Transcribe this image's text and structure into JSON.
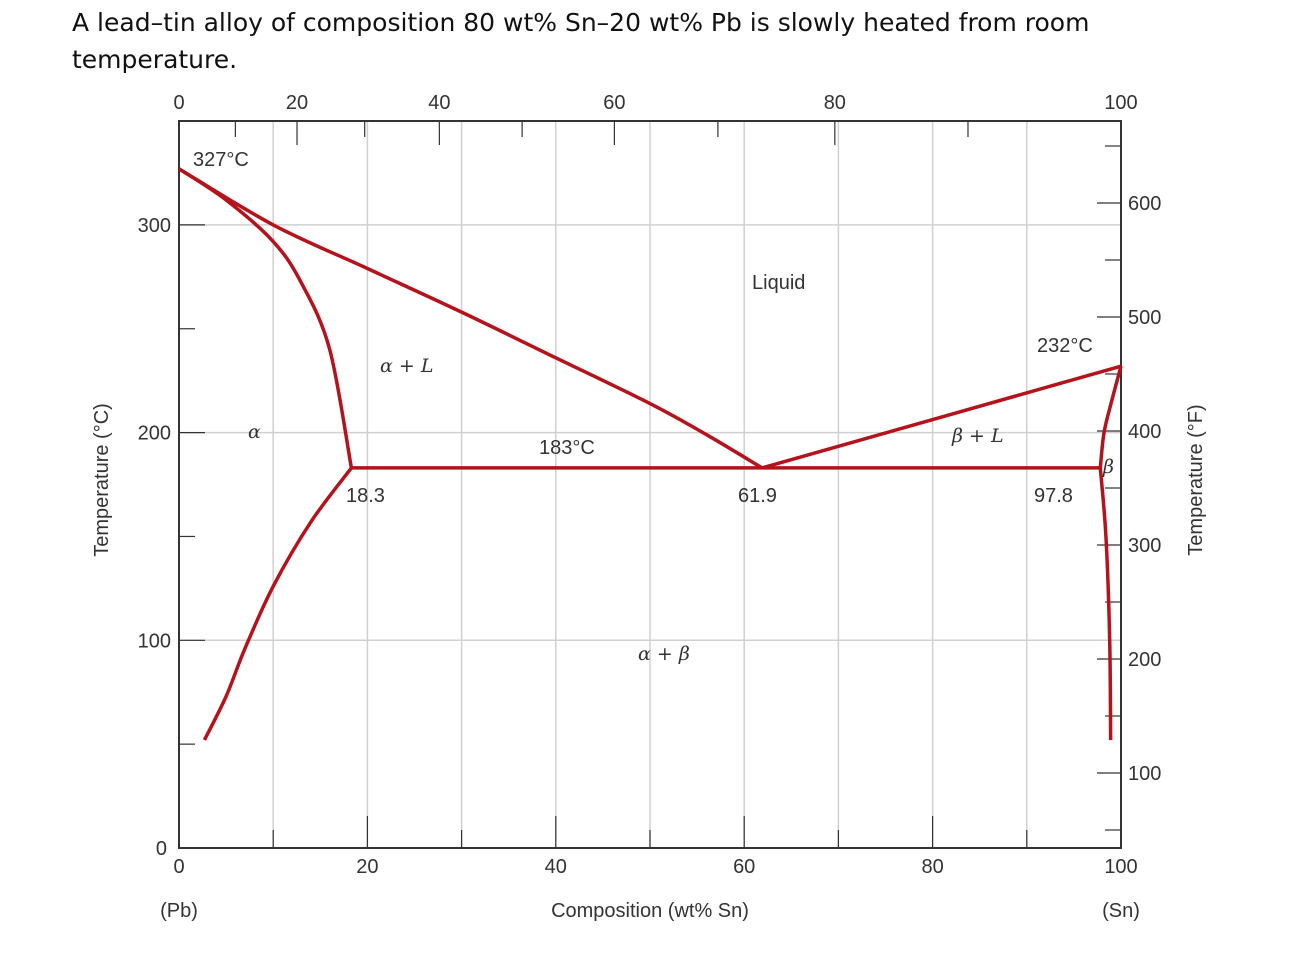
{
  "question": "A lead–tin alloy of composition 80 wt% Sn–20 wt% Pb is slowly heated from room temperature.",
  "chart_data": {
    "type": "line",
    "xlabel": "Composition (wt% Sn)",
    "ylabel": "Temperature (°C)",
    "y2label": "Temperature (°F)",
    "xlim": [
      0,
      100
    ],
    "ylim": [
      0,
      340
    ],
    "x_ticks": [
      "0",
      "20",
      "40",
      "60",
      "80",
      "100"
    ],
    "x_tick_values": [
      0,
      20,
      40,
      60,
      80,
      100
    ],
    "x_end_labels": {
      "left": "(Pb)",
      "right": "(Sn)"
    },
    "top_ticks": [
      "0",
      "20",
      "40",
      "60",
      "80",
      "100"
    ],
    "top_tick_values": [
      0,
      20,
      40,
      60,
      80,
      100
    ],
    "y_ticks": [
      "0",
      "100",
      "200",
      "300"
    ],
    "y_tick_values": [
      0,
      100,
      200,
      300
    ],
    "y2_ticks": [
      "100",
      "200",
      "300",
      "400",
      "500",
      "600"
    ],
    "y2_tick_values": [
      100,
      200,
      300,
      400,
      500,
      600
    ],
    "grid": true,
    "line_color": "#b5121b",
    "curves": [
      {
        "id": "liquidus-left",
        "points": [
          [
            0,
            327
          ],
          [
            10,
            300
          ],
          [
            20,
            279
          ],
          [
            30,
            258
          ],
          [
            40,
            236
          ],
          [
            50,
            214
          ],
          [
            56,
            199
          ],
          [
            61.9,
            183
          ]
        ]
      },
      {
        "id": "liquidus-right",
        "points": [
          [
            61.9,
            183
          ],
          [
            100,
            232
          ]
        ]
      },
      {
        "id": "solidus-alpha",
        "points": [
          [
            0,
            327
          ],
          [
            5,
            312
          ],
          [
            10,
            292
          ],
          [
            13,
            272
          ],
          [
            16,
            240
          ],
          [
            18.3,
            183
          ]
        ]
      },
      {
        "id": "solvus-alpha",
        "points": [
          [
            18.3,
            183
          ],
          [
            14,
            157
          ],
          [
            10,
            126
          ],
          [
            7,
            96
          ],
          [
            5,
            73
          ],
          [
            2.7,
            52
          ]
        ]
      },
      {
        "id": "eutectic-isotherm",
        "points": [
          [
            18.3,
            183
          ],
          [
            97.8,
            183
          ]
        ]
      },
      {
        "id": "solidus-beta",
        "points": [
          [
            100,
            232
          ],
          [
            99,
            215
          ],
          [
            98.2,
            200
          ],
          [
            97.8,
            183
          ]
        ]
      },
      {
        "id": "solvus-beta",
        "points": [
          [
            97.8,
            183
          ],
          [
            98.4,
            150
          ],
          [
            98.8,
            100
          ],
          [
            98.9,
            52
          ]
        ]
      }
    ],
    "annotations": {
      "pb_melt": "327°C",
      "sn_melt": "232°C",
      "eutectic_temp": "183°C",
      "alpha_limit": "18.3",
      "eutectic_comp": "61.9",
      "beta_limit": "97.8",
      "liquid": "Liquid",
      "alpha_plus_l": "α + L",
      "beta_plus_l": "β + L",
      "alpha": "α",
      "beta": "β",
      "alpha_plus_beta": "α + β"
    }
  }
}
